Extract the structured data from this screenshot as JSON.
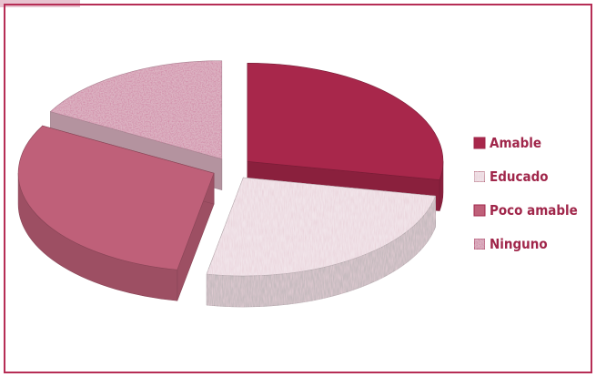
{
  "chart_data": {
    "type": "pie",
    "style": "3d-exploded",
    "title": "",
    "categories": [
      "Amable",
      "Educado",
      "Poco amable",
      "Ninguno"
    ],
    "values": [
      28,
      25,
      30,
      17
    ],
    "legend": {
      "position": "right",
      "entries": [
        {
          "label": "Amable",
          "color": "#a8274b",
          "pattern": "solid"
        },
        {
          "label": "Educado",
          "color": "#f1e4e9",
          "pattern": "light-texture"
        },
        {
          "label": "Poco amable",
          "color": "#bf6079",
          "pattern": "solid"
        },
        {
          "label": "Ninguno",
          "color": "#dcb3c2",
          "pattern": "speckled"
        }
      ]
    }
  },
  "colors": {
    "border": "#b62d55",
    "corner_tab": "#e8c3d0",
    "legend_text": "#a0264a"
  }
}
